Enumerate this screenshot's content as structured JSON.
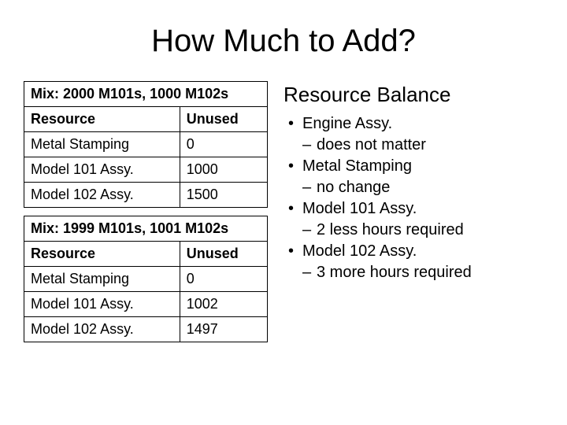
{
  "title": "How Much to Add?",
  "table1": {
    "mix_label": "Mix: 2000 M101s, 1000 M102s",
    "col_resource": "Resource",
    "col_unused": "Unused",
    "rows": [
      {
        "resource": "Metal Stamping",
        "unused": "0"
      },
      {
        "resource": "Model 101 Assy.",
        "unused": "1000"
      },
      {
        "resource": "Model 102 Assy.",
        "unused": "1500"
      }
    ]
  },
  "table2": {
    "mix_label": "Mix: 1999 M101s, 1001 M102s",
    "col_resource": "Resource",
    "col_unused": "Unused",
    "rows": [
      {
        "resource": "Metal Stamping",
        "unused": "0"
      },
      {
        "resource": "Model 101 Assy.",
        "unused": "1002"
      },
      {
        "resource": "Model 102 Assy.",
        "unused": "1497"
      }
    ]
  },
  "right": {
    "heading": "Resource Balance",
    "items": [
      {
        "label": "Engine Assy.",
        "sub": "does not matter"
      },
      {
        "label": "Metal Stamping",
        "sub": "no change"
      },
      {
        "label": "Model 101 Assy.",
        "sub": "2 less hours required"
      },
      {
        "label": "Model 102 Assy.",
        "sub": "3 more hours required"
      }
    ]
  },
  "style": {
    "background_color": "#ffffff",
    "text_color": "#000000",
    "border_color": "#000000",
    "title_fontsize": 40,
    "table_fontsize": 18,
    "heading_fontsize": 26,
    "bullet_fontsize": 20,
    "font_family": "Arial"
  }
}
